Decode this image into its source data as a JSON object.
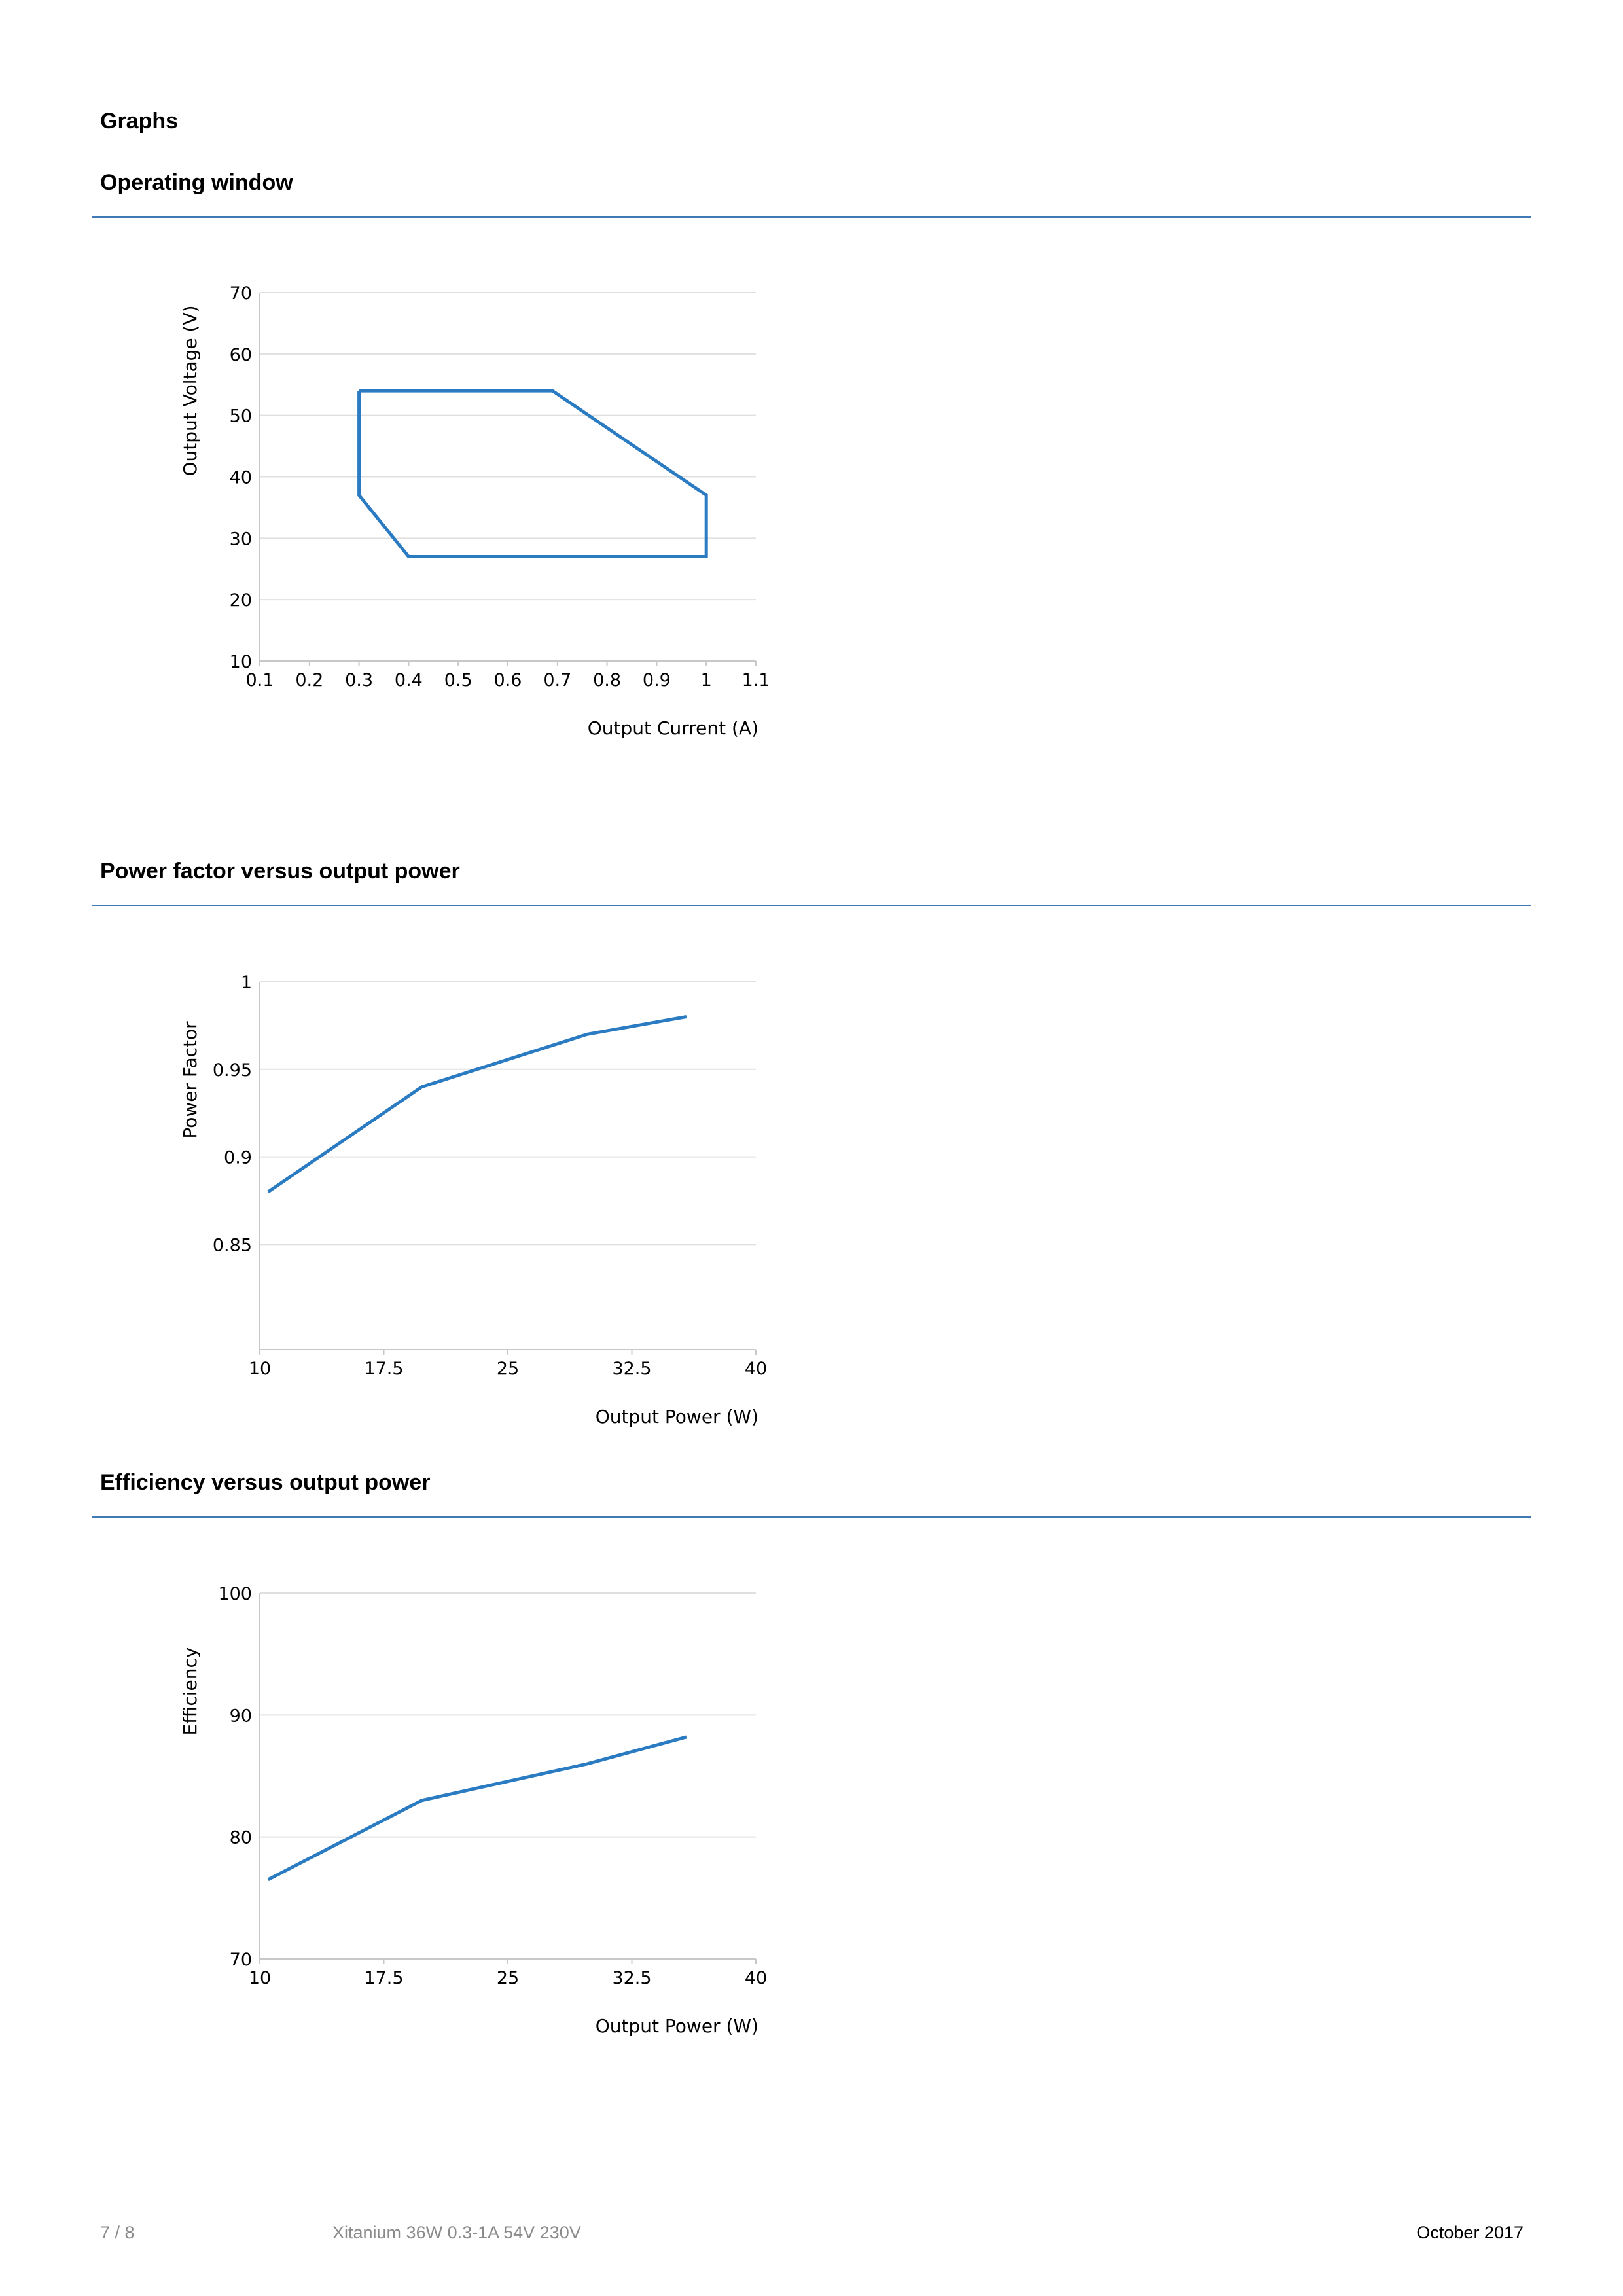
{
  "page": {
    "heading": "Graphs"
  },
  "sections": [
    {
      "title": "Operating window"
    },
    {
      "title": "Power factor versus output power"
    },
    {
      "title": "Efficiency versus output power"
    }
  ],
  "colors": {
    "line": "#2a7bc1",
    "rule": "#3f7ab6",
    "grid": "#e0e0e0",
    "axis": "#c8c8c8"
  },
  "chart_data": [
    {
      "type": "line",
      "series": [
        {
          "x": [
            0.3,
            0.69,
            1.0,
            1.0,
            0.4,
            0.3,
            0.3
          ],
          "y": [
            54,
            54,
            37,
            27,
            27,
            37,
            54
          ]
        }
      ],
      "xlabel": "Output Current (A)",
      "ylabel": "Output Voltage (V)",
      "xlim": [
        0.1,
        1.1
      ],
      "ylim": [
        10,
        70
      ],
      "xticks": [
        0.1,
        0.2,
        0.3,
        0.4,
        0.5,
        0.6,
        0.7,
        0.8,
        0.9,
        1,
        1.1
      ],
      "yticks": [
        10,
        20,
        30,
        40,
        50,
        60,
        70
      ],
      "grid": "horizontal"
    },
    {
      "type": "line",
      "series": [
        {
          "x": [
            10.5,
            19.8,
            29.8,
            35.8
          ],
          "y": [
            0.88,
            0.94,
            0.97,
            0.98
          ]
        }
      ],
      "xlabel": "Output Power (W)",
      "ylabel": "Power Factor",
      "xlim": [
        10,
        40
      ],
      "ylim": [
        0.79,
        1
      ],
      "xticks": [
        10,
        17.5,
        25,
        32.5,
        40
      ],
      "yticks": [
        0.85,
        0.9,
        0.95,
        1
      ],
      "grid": "horizontal"
    },
    {
      "type": "line",
      "series": [
        {
          "x": [
            10.5,
            19.8,
            29.8,
            35.8
          ],
          "y": [
            76.5,
            83,
            86,
            88.2
          ]
        }
      ],
      "xlabel": "Output Power (W)",
      "ylabel": "Efficiency",
      "xlim": [
        10,
        40
      ],
      "ylim": [
        70,
        100
      ],
      "xticks": [
        10,
        17.5,
        25,
        32.5,
        40
      ],
      "yticks": [
        70,
        80,
        90,
        100
      ],
      "grid": "horizontal"
    }
  ],
  "footer": {
    "page_number": "7 / 8",
    "product": "Xitanium 36W 0.3-1A 54V 230V",
    "date": "October 2017"
  }
}
